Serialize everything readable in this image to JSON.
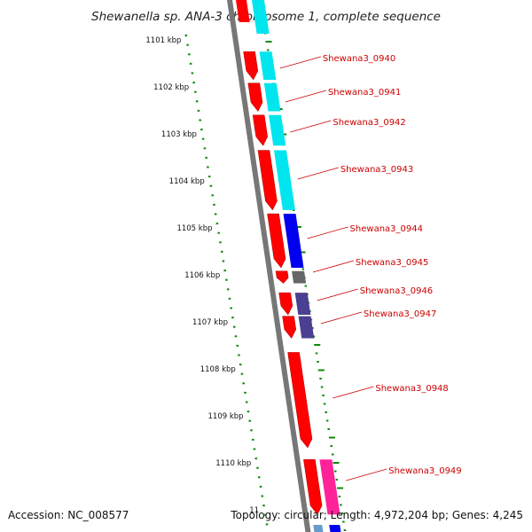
{
  "title": "Shewanella sp. ANA-3 chromosome 1, complete sequence",
  "accession": "Accession: NC_008577",
  "topology": "Topology: circular; Length: 4,972,204 bp; Genes: 4,245",
  "colors": {
    "tick": "#0a8a0a",
    "backbone": "#777777",
    "gene_forward": "#ff0000",
    "label": "#cc0000",
    "cyan": "#00e5ee",
    "blue": "#0000ee",
    "grey": "#666666",
    "purple": "#4b3f91",
    "pink": "#ff2299"
  },
  "chart_data": {
    "type": "genome-map",
    "unit": "kbp",
    "scale_labels": [
      "1101 kbp",
      "1102 kbp",
      "1103 kbp",
      "1104 kbp",
      "1105 kbp",
      "1106 kbp",
      "1107 kbp",
      "1108 kbp",
      "1109 kbp",
      "1110 kbp",
      "11"
    ],
    "genes": [
      {
        "name": "Shewana3_0940",
        "start_kbp": 1101.25,
        "end_kbp": 1101.85,
        "track_color": "cyan"
      },
      {
        "name": "Shewana3_0941",
        "start_kbp": 1101.92,
        "end_kbp": 1102.52,
        "track_color": "cyan"
      },
      {
        "name": "Shewana3_0942",
        "start_kbp": 1102.6,
        "end_kbp": 1103.25,
        "track_color": "cyan"
      },
      {
        "name": "Shewana3_0943",
        "start_kbp": 1103.35,
        "end_kbp": 1104.62,
        "track_color": "cyan"
      },
      {
        "name": "Shewana3_0944",
        "start_kbp": 1104.7,
        "end_kbp": 1105.85,
        "track_color": "blue"
      },
      {
        "name": "Shewana3_0945",
        "start_kbp": 1105.92,
        "end_kbp": 1106.18,
        "track_color": "grey"
      },
      {
        "name": "Shewana3_0946",
        "start_kbp": 1106.38,
        "end_kbp": 1106.85,
        "track_color": "purple"
      },
      {
        "name": "Shewana3_0947",
        "start_kbp": 1106.88,
        "end_kbp": 1107.35,
        "track_color": "purple"
      },
      {
        "name": "Shewana3_0948",
        "start_kbp": 1107.65,
        "end_kbp": 1109.68,
        "track_color": "none"
      },
      {
        "name": "Shewana3_0949",
        "start_kbp": 1109.93,
        "end_kbp": 1111.1,
        "track_color": "pink"
      }
    ]
  }
}
